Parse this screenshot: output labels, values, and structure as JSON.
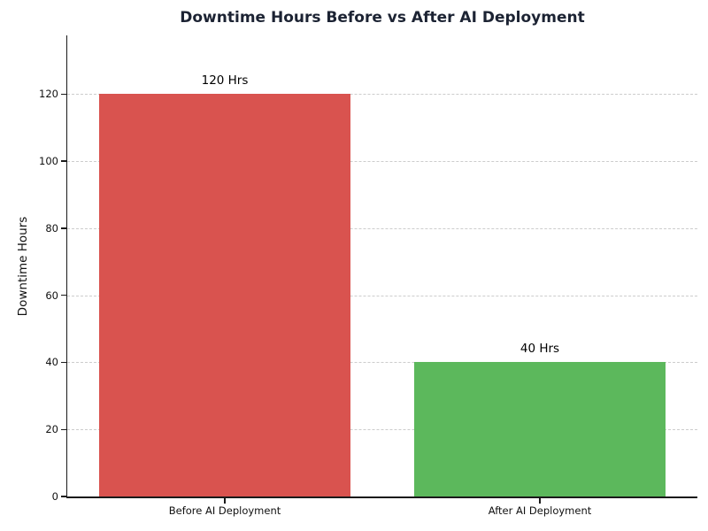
{
  "chart_data": {
    "type": "bar",
    "title": "Downtime Hours Before vs After AI Deployment",
    "xlabel": "",
    "ylabel": "Downtime Hours",
    "categories": [
      "Before AI Deployment",
      "After AI Deployment"
    ],
    "values": [
      120,
      40
    ],
    "bar_labels": [
      "120 Hrs",
      "40 Hrs"
    ],
    "bar_colors": [
      "#d9534f",
      "#5cb85c"
    ],
    "yticks": [
      0,
      20,
      40,
      60,
      80,
      100,
      120
    ],
    "ylim": [
      0,
      137.5
    ],
    "bar_width_fraction": 0.8,
    "grid": "horizontal dashed",
    "grid_color": "#cccccc",
    "title_color": "#1c2333",
    "text_color": "#111111",
    "background_color": "#ffffff",
    "legend": "none"
  }
}
